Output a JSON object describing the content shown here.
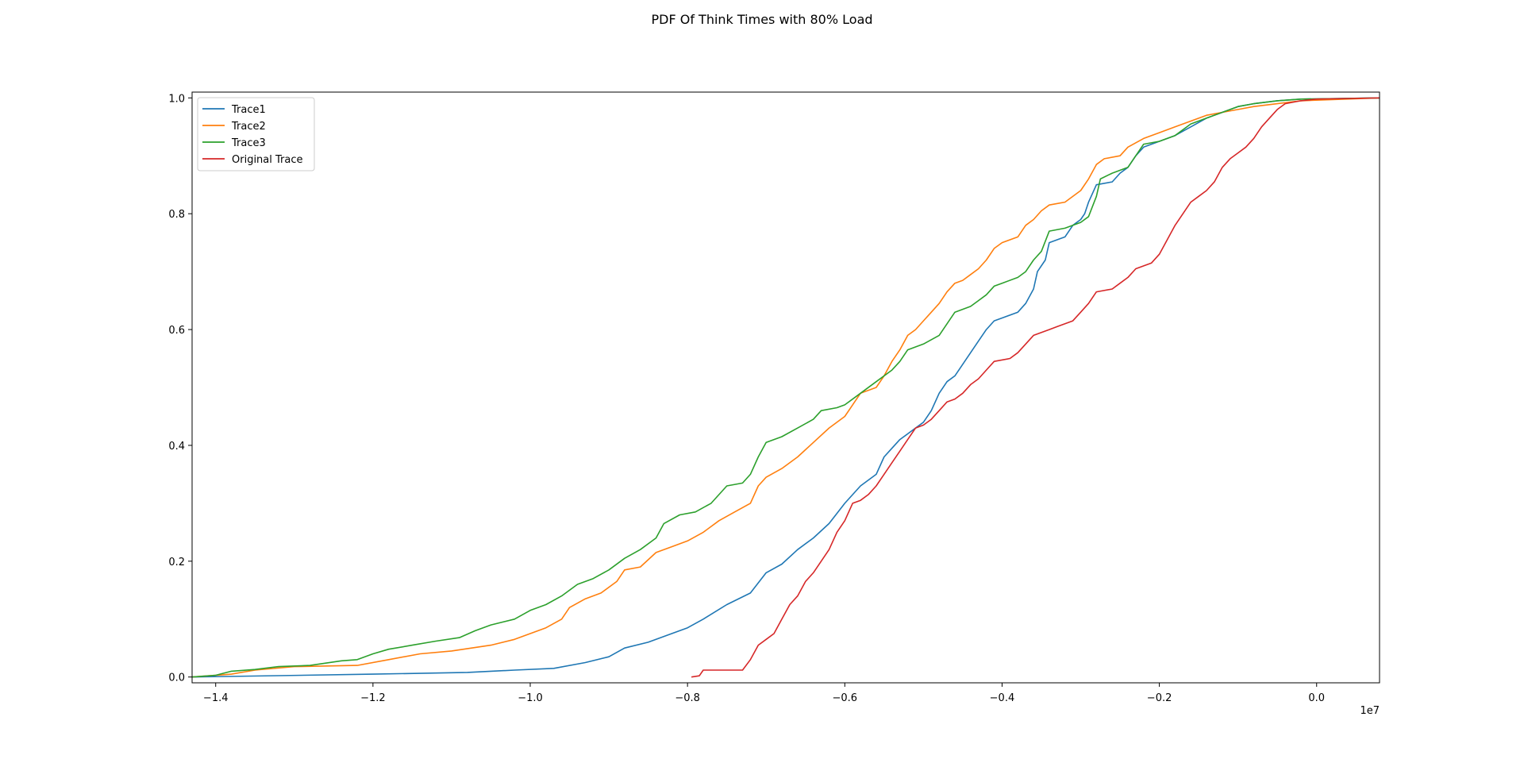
{
  "chart_data": {
    "type": "line",
    "title": "PDF Of Think Times with 80% Load",
    "xlabel": "",
    "ylabel": "",
    "x_offset_text": "1e7",
    "xlim": [
      -1.43,
      0.08
    ],
    "ylim": [
      -0.01,
      1.01
    ],
    "x_ticks": [
      -1.4,
      -1.2,
      -1.0,
      -0.8,
      -0.6,
      -0.4,
      -0.2,
      0.0
    ],
    "x_tick_labels": [
      "−1.4",
      "−1.2",
      "−1.0",
      "−0.8",
      "−0.6",
      "−0.4",
      "−0.2",
      "0.0"
    ],
    "y_ticks": [
      0.0,
      0.2,
      0.4,
      0.6,
      0.8,
      1.0
    ],
    "y_tick_labels": [
      "0.0",
      "0.2",
      "0.4",
      "0.6",
      "0.8",
      "1.0"
    ],
    "grid": false,
    "legend_position": "top-left",
    "series": [
      {
        "name": "Trace1",
        "color": "#1f77b4",
        "points": [
          [
            -1.43,
            0.0
          ],
          [
            -1.2,
            0.005
          ],
          [
            -1.08,
            0.008
          ],
          [
            -1.02,
            0.012
          ],
          [
            -0.97,
            0.015
          ],
          [
            -0.93,
            0.025
          ],
          [
            -0.9,
            0.035
          ],
          [
            -0.88,
            0.05
          ],
          [
            -0.85,
            0.06
          ],
          [
            -0.82,
            0.075
          ],
          [
            -0.8,
            0.085
          ],
          [
            -0.78,
            0.1
          ],
          [
            -0.75,
            0.125
          ],
          [
            -0.72,
            0.145
          ],
          [
            -0.7,
            0.18
          ],
          [
            -0.68,
            0.195
          ],
          [
            -0.66,
            0.22
          ],
          [
            -0.64,
            0.24
          ],
          [
            -0.62,
            0.265
          ],
          [
            -0.6,
            0.3
          ],
          [
            -0.58,
            0.33
          ],
          [
            -0.56,
            0.35
          ],
          [
            -0.55,
            0.38
          ],
          [
            -0.54,
            0.395
          ],
          [
            -0.53,
            0.41
          ],
          [
            -0.52,
            0.42
          ],
          [
            -0.5,
            0.44
          ],
          [
            -0.49,
            0.46
          ],
          [
            -0.48,
            0.49
          ],
          [
            -0.47,
            0.51
          ],
          [
            -0.46,
            0.52
          ],
          [
            -0.45,
            0.54
          ],
          [
            -0.44,
            0.56
          ],
          [
            -0.43,
            0.58
          ],
          [
            -0.42,
            0.6
          ],
          [
            -0.41,
            0.615
          ],
          [
            -0.4,
            0.62
          ],
          [
            -0.38,
            0.63
          ],
          [
            -0.37,
            0.645
          ],
          [
            -0.36,
            0.67
          ],
          [
            -0.355,
            0.7
          ],
          [
            -0.345,
            0.72
          ],
          [
            -0.34,
            0.75
          ],
          [
            -0.32,
            0.76
          ],
          [
            -0.31,
            0.78
          ],
          [
            -0.3,
            0.79
          ],
          [
            -0.295,
            0.8
          ],
          [
            -0.29,
            0.82
          ],
          [
            -0.285,
            0.835
          ],
          [
            -0.28,
            0.85
          ],
          [
            -0.26,
            0.855
          ],
          [
            -0.25,
            0.87
          ],
          [
            -0.24,
            0.88
          ],
          [
            -0.23,
            0.9
          ],
          [
            -0.22,
            0.915
          ],
          [
            -0.2,
            0.925
          ],
          [
            -0.18,
            0.935
          ],
          [
            -0.16,
            0.95
          ],
          [
            -0.14,
            0.965
          ],
          [
            -0.12,
            0.975
          ],
          [
            -0.1,
            0.985
          ],
          [
            -0.08,
            0.99
          ],
          [
            -0.05,
            0.995
          ],
          [
            -0.02,
            0.998
          ],
          [
            0.08,
            1.0
          ]
        ]
      },
      {
        "name": "Trace2",
        "color": "#ff7f0e",
        "points": [
          [
            -1.43,
            0.0
          ],
          [
            -1.38,
            0.005
          ],
          [
            -1.35,
            0.012
          ],
          [
            -1.3,
            0.018
          ],
          [
            -1.22,
            0.02
          ],
          [
            -1.18,
            0.03
          ],
          [
            -1.14,
            0.04
          ],
          [
            -1.1,
            0.045
          ],
          [
            -1.05,
            0.055
          ],
          [
            -1.02,
            0.065
          ],
          [
            -1.0,
            0.075
          ],
          [
            -0.98,
            0.085
          ],
          [
            -0.96,
            0.1
          ],
          [
            -0.95,
            0.12
          ],
          [
            -0.93,
            0.135
          ],
          [
            -0.91,
            0.145
          ],
          [
            -0.89,
            0.165
          ],
          [
            -0.88,
            0.185
          ],
          [
            -0.86,
            0.19
          ],
          [
            -0.84,
            0.215
          ],
          [
            -0.82,
            0.225
          ],
          [
            -0.8,
            0.235
          ],
          [
            -0.78,
            0.25
          ],
          [
            -0.76,
            0.27
          ],
          [
            -0.74,
            0.285
          ],
          [
            -0.72,
            0.3
          ],
          [
            -0.71,
            0.33
          ],
          [
            -0.7,
            0.345
          ],
          [
            -0.68,
            0.36
          ],
          [
            -0.66,
            0.38
          ],
          [
            -0.64,
            0.405
          ],
          [
            -0.62,
            0.43
          ],
          [
            -0.6,
            0.45
          ],
          [
            -0.59,
            0.47
          ],
          [
            -0.58,
            0.49
          ],
          [
            -0.56,
            0.5
          ],
          [
            -0.55,
            0.52
          ],
          [
            -0.54,
            0.545
          ],
          [
            -0.53,
            0.565
          ],
          [
            -0.52,
            0.59
          ],
          [
            -0.51,
            0.6
          ],
          [
            -0.5,
            0.615
          ],
          [
            -0.49,
            0.63
          ],
          [
            -0.48,
            0.645
          ],
          [
            -0.47,
            0.665
          ],
          [
            -0.46,
            0.68
          ],
          [
            -0.45,
            0.685
          ],
          [
            -0.44,
            0.695
          ],
          [
            -0.43,
            0.705
          ],
          [
            -0.42,
            0.72
          ],
          [
            -0.41,
            0.74
          ],
          [
            -0.4,
            0.75
          ],
          [
            -0.38,
            0.76
          ],
          [
            -0.37,
            0.78
          ],
          [
            -0.36,
            0.79
          ],
          [
            -0.35,
            0.805
          ],
          [
            -0.34,
            0.815
          ],
          [
            -0.32,
            0.82
          ],
          [
            -0.3,
            0.84
          ],
          [
            -0.29,
            0.86
          ],
          [
            -0.28,
            0.885
          ],
          [
            -0.27,
            0.895
          ],
          [
            -0.25,
            0.9
          ],
          [
            -0.24,
            0.915
          ],
          [
            -0.22,
            0.93
          ],
          [
            -0.2,
            0.94
          ],
          [
            -0.18,
            0.95
          ],
          [
            -0.16,
            0.96
          ],
          [
            -0.14,
            0.97
          ],
          [
            -0.12,
            0.975
          ],
          [
            -0.1,
            0.98
          ],
          [
            -0.08,
            0.985
          ],
          [
            -0.05,
            0.99
          ],
          [
            -0.02,
            0.995
          ],
          [
            0.08,
            1.0
          ]
        ]
      },
      {
        "name": "Trace3",
        "color": "#2ca02c",
        "points": [
          [
            -1.43,
            0.0
          ],
          [
            -1.4,
            0.003
          ],
          [
            -1.38,
            0.01
          ],
          [
            -1.35,
            0.013
          ],
          [
            -1.32,
            0.018
          ],
          [
            -1.28,
            0.02
          ],
          [
            -1.24,
            0.028
          ],
          [
            -1.22,
            0.03
          ],
          [
            -1.2,
            0.04
          ],
          [
            -1.18,
            0.048
          ],
          [
            -1.15,
            0.055
          ],
          [
            -1.12,
            0.062
          ],
          [
            -1.09,
            0.068
          ],
          [
            -1.07,
            0.08
          ],
          [
            -1.05,
            0.09
          ],
          [
            -1.02,
            0.1
          ],
          [
            -1.0,
            0.115
          ],
          [
            -0.98,
            0.125
          ],
          [
            -0.96,
            0.14
          ],
          [
            -0.94,
            0.16
          ],
          [
            -0.92,
            0.17
          ],
          [
            -0.9,
            0.185
          ],
          [
            -0.88,
            0.205
          ],
          [
            -0.86,
            0.22
          ],
          [
            -0.84,
            0.24
          ],
          [
            -0.83,
            0.265
          ],
          [
            -0.81,
            0.28
          ],
          [
            -0.79,
            0.285
          ],
          [
            -0.77,
            0.3
          ],
          [
            -0.75,
            0.33
          ],
          [
            -0.73,
            0.335
          ],
          [
            -0.72,
            0.35
          ],
          [
            -0.71,
            0.38
          ],
          [
            -0.7,
            0.405
          ],
          [
            -0.68,
            0.415
          ],
          [
            -0.66,
            0.43
          ],
          [
            -0.64,
            0.445
          ],
          [
            -0.63,
            0.46
          ],
          [
            -0.61,
            0.465
          ],
          [
            -0.6,
            0.47
          ],
          [
            -0.58,
            0.49
          ],
          [
            -0.56,
            0.51
          ],
          [
            -0.54,
            0.53
          ],
          [
            -0.53,
            0.545
          ],
          [
            -0.52,
            0.565
          ],
          [
            -0.5,
            0.575
          ],
          [
            -0.48,
            0.59
          ],
          [
            -0.47,
            0.61
          ],
          [
            -0.46,
            0.63
          ],
          [
            -0.44,
            0.64
          ],
          [
            -0.43,
            0.65
          ],
          [
            -0.42,
            0.66
          ],
          [
            -0.41,
            0.675
          ],
          [
            -0.4,
            0.68
          ],
          [
            -0.38,
            0.69
          ],
          [
            -0.37,
            0.7
          ],
          [
            -0.36,
            0.72
          ],
          [
            -0.35,
            0.735
          ],
          [
            -0.34,
            0.77
          ],
          [
            -0.32,
            0.775
          ],
          [
            -0.3,
            0.785
          ],
          [
            -0.29,
            0.795
          ],
          [
            -0.28,
            0.83
          ],
          [
            -0.275,
            0.86
          ],
          [
            -0.26,
            0.87
          ],
          [
            -0.24,
            0.88
          ],
          [
            -0.23,
            0.9
          ],
          [
            -0.22,
            0.92
          ],
          [
            -0.2,
            0.925
          ],
          [
            -0.18,
            0.935
          ],
          [
            -0.16,
            0.955
          ],
          [
            -0.14,
            0.965
          ],
          [
            -0.12,
            0.975
          ],
          [
            -0.1,
            0.985
          ],
          [
            -0.08,
            0.99
          ],
          [
            -0.05,
            0.995
          ],
          [
            -0.02,
            0.998
          ],
          [
            0.08,
            1.0
          ]
        ]
      },
      {
        "name": "Original Trace",
        "color": "#d62728",
        "points": [
          [
            -0.795,
            0.0
          ],
          [
            -0.785,
            0.002
          ],
          [
            -0.78,
            0.012
          ],
          [
            -0.73,
            0.012
          ],
          [
            -0.72,
            0.03
          ],
          [
            -0.71,
            0.055
          ],
          [
            -0.7,
            0.065
          ],
          [
            -0.69,
            0.075
          ],
          [
            -0.68,
            0.1
          ],
          [
            -0.67,
            0.125
          ],
          [
            -0.66,
            0.14
          ],
          [
            -0.65,
            0.165
          ],
          [
            -0.64,
            0.18
          ],
          [
            -0.63,
            0.2
          ],
          [
            -0.62,
            0.22
          ],
          [
            -0.61,
            0.25
          ],
          [
            -0.6,
            0.27
          ],
          [
            -0.59,
            0.3
          ],
          [
            -0.58,
            0.305
          ],
          [
            -0.57,
            0.315
          ],
          [
            -0.56,
            0.33
          ],
          [
            -0.55,
            0.35
          ],
          [
            -0.54,
            0.37
          ],
          [
            -0.53,
            0.39
          ],
          [
            -0.52,
            0.41
          ],
          [
            -0.51,
            0.43
          ],
          [
            -0.5,
            0.435
          ],
          [
            -0.49,
            0.445
          ],
          [
            -0.48,
            0.46
          ],
          [
            -0.47,
            0.475
          ],
          [
            -0.46,
            0.48
          ],
          [
            -0.45,
            0.49
          ],
          [
            -0.44,
            0.505
          ],
          [
            -0.43,
            0.515
          ],
          [
            -0.42,
            0.53
          ],
          [
            -0.41,
            0.545
          ],
          [
            -0.39,
            0.55
          ],
          [
            -0.38,
            0.56
          ],
          [
            -0.37,
            0.575
          ],
          [
            -0.36,
            0.59
          ],
          [
            -0.34,
            0.6
          ],
          [
            -0.33,
            0.605
          ],
          [
            -0.31,
            0.615
          ],
          [
            -0.3,
            0.63
          ],
          [
            -0.29,
            0.645
          ],
          [
            -0.28,
            0.665
          ],
          [
            -0.26,
            0.67
          ],
          [
            -0.25,
            0.68
          ],
          [
            -0.24,
            0.69
          ],
          [
            -0.23,
            0.705
          ],
          [
            -0.21,
            0.715
          ],
          [
            -0.2,
            0.73
          ],
          [
            -0.19,
            0.755
          ],
          [
            -0.18,
            0.78
          ],
          [
            -0.17,
            0.8
          ],
          [
            -0.16,
            0.82
          ],
          [
            -0.15,
            0.83
          ],
          [
            -0.14,
            0.84
          ],
          [
            -0.13,
            0.855
          ],
          [
            -0.12,
            0.88
          ],
          [
            -0.11,
            0.895
          ],
          [
            -0.1,
            0.905
          ],
          [
            -0.09,
            0.915
          ],
          [
            -0.08,
            0.93
          ],
          [
            -0.07,
            0.95
          ],
          [
            -0.06,
            0.965
          ],
          [
            -0.05,
            0.98
          ],
          [
            -0.04,
            0.99
          ],
          [
            -0.02,
            0.995
          ],
          [
            0.0,
            0.998
          ],
          [
            0.08,
            1.0
          ]
        ]
      }
    ]
  }
}
